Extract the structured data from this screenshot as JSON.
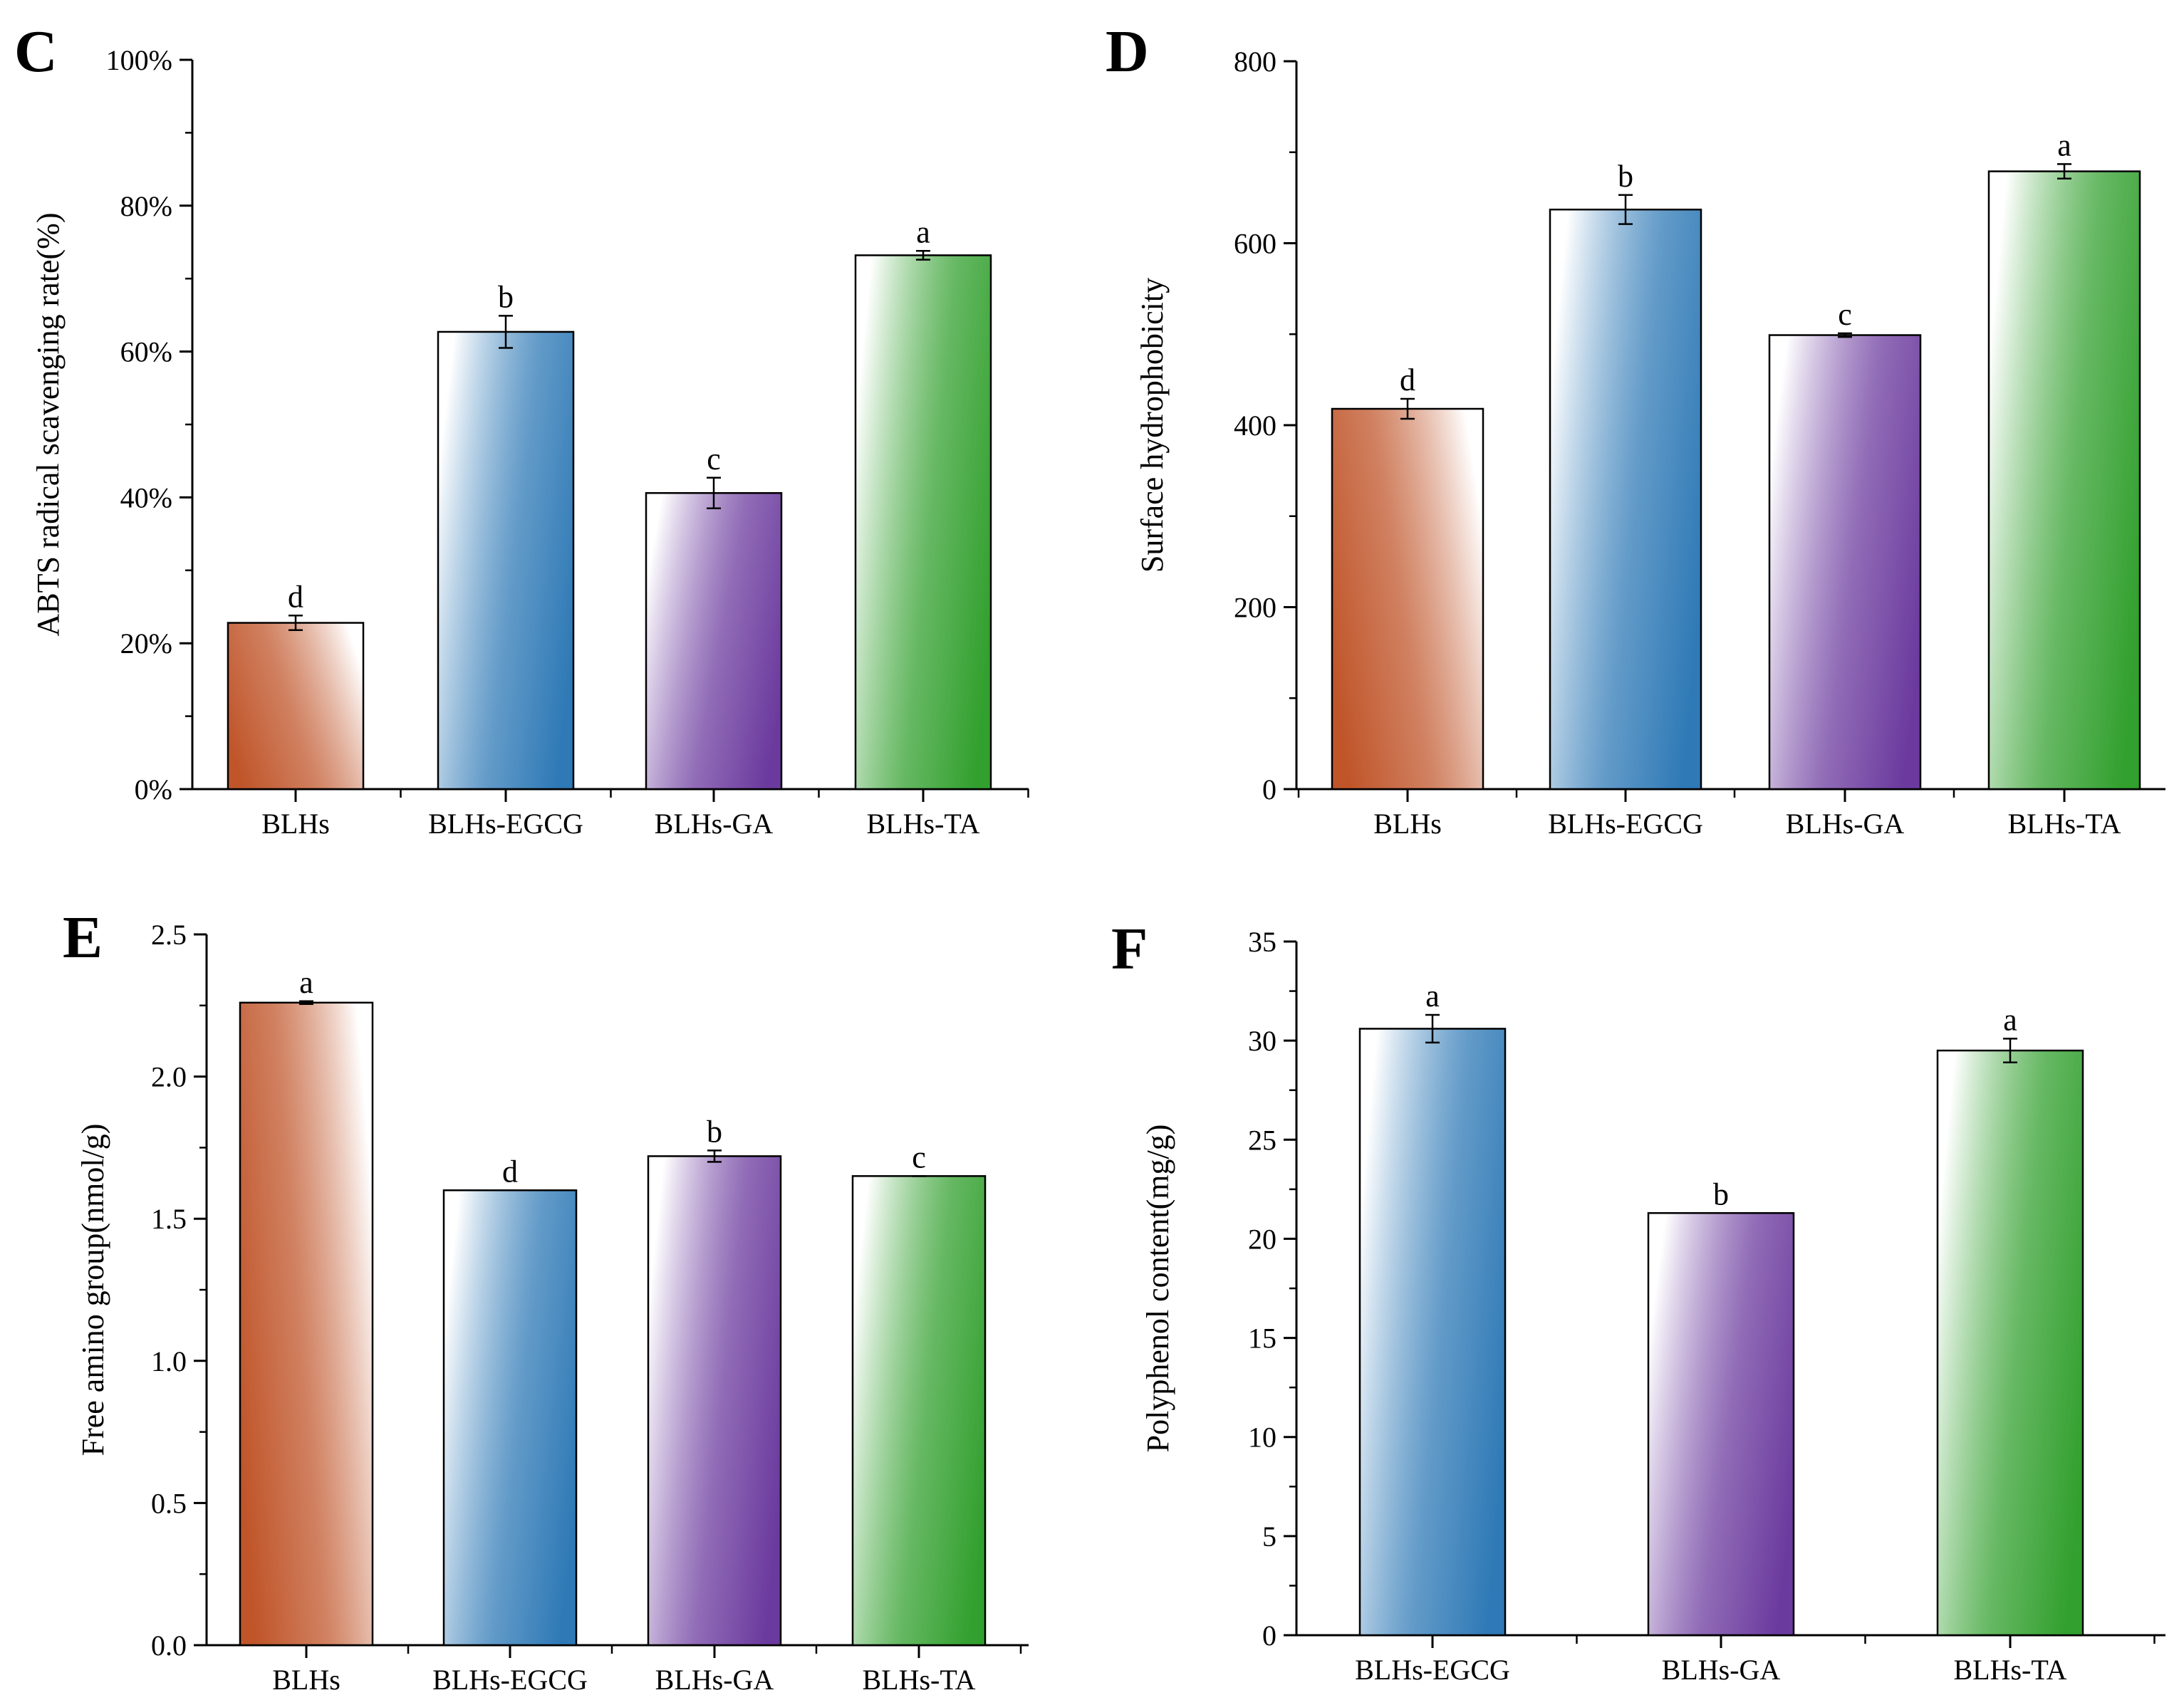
{
  "colors": {
    "BLHs": "#c0552a",
    "BLHs-EGCG": "#2e79b6",
    "BLHs-GA": "#6b3a9e",
    "BLHs-TA": "#32a02e"
  },
  "chart_data": [
    {
      "panel": "C",
      "type": "bar",
      "title": "",
      "xlabel": "",
      "ylabel": "ABTS radical scavenging rate(%)",
      "ylim": [
        0,
        100
      ],
      "yticks": [
        "0%",
        "20%",
        "40%",
        "60%",
        "80%",
        "100%"
      ],
      "categories": [
        "BLHs",
        "BLHs-EGCG",
        "BLHs-GA",
        "BLHs-TA"
      ],
      "values": [
        22.8,
        62.7,
        40.6,
        73.2
      ],
      "errors": [
        1.0,
        2.2,
        2.1,
        0.6
      ],
      "significance": [
        "d",
        "b",
        "c",
        "a"
      ]
    },
    {
      "panel": "D",
      "type": "bar",
      "title": "",
      "xlabel": "",
      "ylabel": "Surface hydrophobicity",
      "ylim": [
        0,
        800
      ],
      "yticks": [
        "0",
        "200",
        "400",
        "600",
        "800"
      ],
      "categories": [
        "BLHs",
        "BLHs-EGCG",
        "BLHs-GA",
        "BLHs-TA"
      ],
      "values": [
        418,
        637,
        499,
        679
      ],
      "errors": [
        11,
        16,
        2,
        8
      ],
      "significance": [
        "d",
        "b",
        "c",
        "a"
      ]
    },
    {
      "panel": "E",
      "type": "bar",
      "title": "",
      "xlabel": "",
      "ylabel": "Free amino group(nmol/g)",
      "ylim": [
        0,
        2.5
      ],
      "yticks": [
        "0.0",
        "0.5",
        "1.0",
        "1.5",
        "2.0",
        "2.5"
      ],
      "categories": [
        "BLHs",
        "BLHs-EGCG",
        "BLHs-GA",
        "BLHs-TA"
      ],
      "values": [
        2.26,
        1.6,
        1.72,
        1.65
      ],
      "errors": [
        0.005,
        0,
        0.02,
        0
      ],
      "significance": [
        "a",
        "d",
        "b",
        "c"
      ]
    },
    {
      "panel": "F",
      "type": "bar",
      "title": "",
      "xlabel": "",
      "ylabel": "Polyphenol content(mg/g)",
      "ylim": [
        0,
        35
      ],
      "yticks": [
        "0",
        "5",
        "10",
        "15",
        "20",
        "25",
        "30",
        "35"
      ],
      "categories": [
        "BLHs-EGCG",
        "BLHs-GA",
        "BLHs-TA"
      ],
      "values": [
        30.6,
        21.3,
        29.5
      ],
      "errors": [
        0.7,
        0,
        0.6
      ],
      "significance": [
        "a",
        "b",
        "a"
      ]
    }
  ]
}
